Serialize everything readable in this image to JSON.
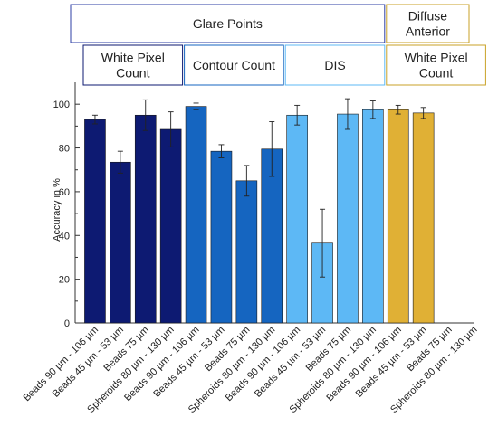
{
  "chart_data": {
    "type": "bar",
    "title": "",
    "xlabel": "",
    "ylabel": "Accuracy in %",
    "ylim": [
      0,
      110
    ],
    "yticks": [
      0,
      20,
      40,
      60,
      80,
      100
    ],
    "grid": false,
    "categories": [
      "Beads 90 µm - 106 µm",
      "Beads 45 µm - 53 µm",
      "Beads 75 µm",
      "Spheroids 80 µm - 130 µm",
      "Beads 90 µm - 106 µm",
      "Beads 45 µm - 53 µm",
      "Beads 75 µm",
      "Spheroids 80 µm - 130 µm",
      "Beads 90 µm - 106 µm",
      "Beads 45 µm - 53 µm",
      "Beads 75 µm",
      "Spheroids 80 µm - 130 µm",
      "Beads 90 µm - 106 µm",
      "Beads 45 µm - 53 µm",
      "Beads 75 µm",
      "Spheroids 80 µm - 130 µm"
    ],
    "values": [
      93,
      73.5,
      95,
      88.5,
      99,
      78.5,
      65,
      79.5,
      95,
      36.5,
      95.5,
      97.5,
      97.5,
      96,
      null,
      null
    ],
    "errors": [
      2,
      5,
      7,
      8,
      1.5,
      3,
      7,
      12.5,
      4.5,
      15.5,
      7,
      4,
      2,
      2.5,
      null,
      null
    ],
    "colors": [
      "#0d1a72",
      "#0d1a72",
      "#0d1a72",
      "#0d1a72",
      "#1565c0",
      "#1565c0",
      "#1565c0",
      "#1565c0",
      "#5db8f5",
      "#5db8f5",
      "#5db8f5",
      "#5db8f5",
      "#e0b035",
      "#e0b035",
      "#e0b035",
      "#e0b035"
    ],
    "header_groups": [
      {
        "label": "Glare Points",
        "start": 0,
        "end": 11,
        "border": "#2e3fa6"
      },
      {
        "label": "Diffuse Anterior",
        "start": 12,
        "end": 15,
        "border": "#c9a227"
      }
    ],
    "method_groups": [
      {
        "label": "White Pixel Count",
        "start": 0,
        "end": 3,
        "border": "#0d1a72"
      },
      {
        "label": "Contour Count",
        "start": 4,
        "end": 7,
        "border": "#1565c0"
      },
      {
        "label": "DIS",
        "start": 8,
        "end": 11,
        "border": "#5db8f5"
      },
      {
        "label": "White Pixel Count",
        "start": 12,
        "end": 15,
        "border": "#c9a227"
      }
    ]
  }
}
